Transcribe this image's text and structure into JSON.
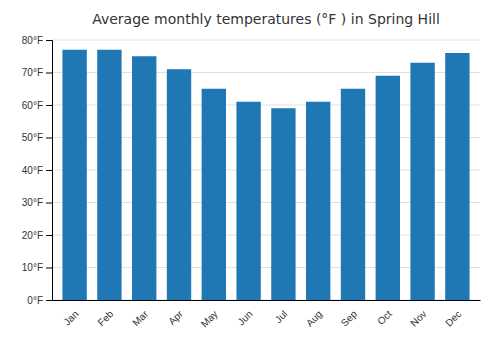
{
  "chart_data": {
    "type": "bar",
    "title": "Average monthly temperatures (°F ) in Spring Hill",
    "categories": [
      "Jan",
      "Feb",
      "Mar",
      "Apr",
      "May",
      "Jun",
      "Jul",
      "Aug",
      "Sep",
      "Oct",
      "Nov",
      "Dec"
    ],
    "values": [
      77,
      77,
      75,
      71,
      65,
      61,
      59,
      61,
      65,
      69,
      73,
      76
    ],
    "ylim": [
      0,
      80
    ],
    "yticks": [
      {
        "value": 0,
        "label": "0°F"
      },
      {
        "value": 10,
        "label": "10°F"
      },
      {
        "value": 20,
        "label": "20°F"
      },
      {
        "value": 30,
        "label": "30°F"
      },
      {
        "value": 40,
        "label": "40°F"
      },
      {
        "value": 50,
        "label": "50°F"
      },
      {
        "value": 60,
        "label": "60°F"
      },
      {
        "value": 70,
        "label": "70°F"
      },
      {
        "value": 80,
        "label": "80°F"
      }
    ],
    "grid": true
  }
}
